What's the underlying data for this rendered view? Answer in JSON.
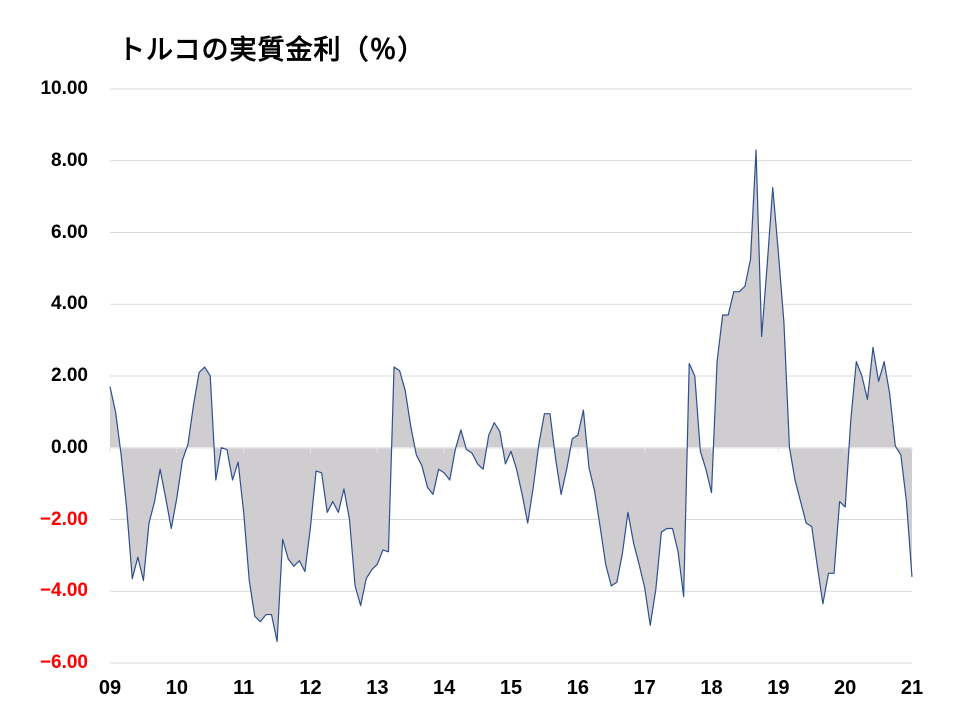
{
  "chart_data": {
    "type": "area",
    "title": "トルコの実質金利（％）",
    "xlabel": "",
    "ylabel": "",
    "ylim": [
      -6,
      10
    ],
    "y_ticks": [
      "10.00",
      "8.00",
      "6.00",
      "4.00",
      "2.00",
      "0.00",
      "-2.00",
      "-4.00",
      "-6.00"
    ],
    "y_tick_values": [
      10,
      8,
      6,
      4,
      2,
      0,
      -2,
      -4,
      -6
    ],
    "x_ticks": [
      "09",
      "10",
      "11",
      "12",
      "13",
      "14",
      "15",
      "16",
      "17",
      "18",
      "19",
      "20",
      "21"
    ],
    "grid": true,
    "legend": "none",
    "frequency": "monthly",
    "x_start": "2009-01",
    "series": [
      {
        "name": "実質金利",
        "values": [
          1.7,
          1.0,
          -0.2,
          -1.7,
          -3.65,
          -3.05,
          -3.7,
          -2.1,
          -1.5,
          -0.6,
          -1.4,
          -2.25,
          -1.4,
          -0.35,
          0.1,
          1.2,
          2.1,
          2.25,
          2.0,
          -0.9,
          0.0,
          -0.05,
          -0.9,
          -0.4,
          -1.8,
          -3.7,
          -4.7,
          -4.85,
          -4.65,
          -4.65,
          -5.4,
          -2.55,
          -3.1,
          -3.3,
          -3.15,
          -3.45,
          -2.2,
          -0.65,
          -0.7,
          -1.8,
          -1.5,
          -1.8,
          -1.15,
          -2.0,
          -3.85,
          -4.4,
          -3.65,
          -3.4,
          -3.25,
          -2.85,
          -2.9,
          2.25,
          2.15,
          1.6,
          0.6,
          -0.2,
          -0.5,
          -1.1,
          -1.3,
          -0.6,
          -0.7,
          -0.9,
          -0.05,
          0.5,
          -0.05,
          -0.15,
          -0.45,
          -0.6,
          0.35,
          0.7,
          0.45,
          -0.45,
          -0.1,
          -0.6,
          -1.3,
          -2.1,
          -1.1,
          0.1,
          0.95,
          0.95,
          -0.3,
          -1.3,
          -0.6,
          0.25,
          0.35,
          1.05,
          -0.55,
          -1.2,
          -2.2,
          -3.25,
          -3.85,
          -3.75,
          -2.95,
          -1.8,
          -2.65,
          -3.25,
          -3.9,
          -4.95,
          -3.95,
          -2.35,
          -2.25,
          -2.25,
          -2.9,
          -4.15,
          2.35,
          2.0,
          -0.1,
          -0.6,
          -1.25,
          2.4,
          3.7,
          3.7,
          4.35,
          4.35,
          4.5,
          5.25,
          8.3,
          3.1,
          5.1,
          7.25,
          5.45,
          3.5,
          0.0,
          -0.9,
          -1.5,
          -2.1,
          -2.2,
          -3.3,
          -4.35,
          -3.5,
          -3.5,
          -1.5,
          -1.65,
          0.75,
          2.4,
          2.0,
          1.35,
          2.8,
          1.85,
          2.4,
          1.5,
          0.05,
          -0.2,
          -1.5,
          -3.6
        ]
      }
    ],
    "colors": {
      "line": "#2f4f8f",
      "fill": "#cfcdcf",
      "grid": "#d9d9d9",
      "positive_label": "#000000",
      "negative_label": "#ff0000"
    }
  }
}
